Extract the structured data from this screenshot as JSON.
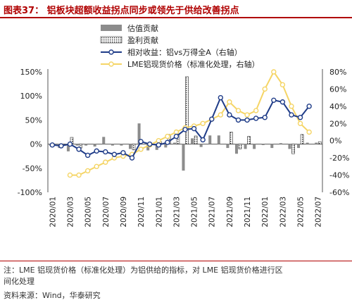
{
  "title": "图表37：  铝板块超额收益拐点同步或领先于供给改善拐点",
  "footnote_line1": "注：LME 铝现货价格（标准化处理）为铝供给的指标，对 LME 铝现货价格进行区",
  "footnote_line2": "间化处理",
  "source": "资料来源：Wind，华泰研究",
  "colors": {
    "valuation": "#8c8c8c",
    "earnings": "#333333",
    "relative": "#1f3c88",
    "lme": "#f5d566",
    "title": "#b00000"
  },
  "chart_data": {
    "type": "bar+line",
    "categories": [
      "2020/01",
      "2020/02",
      "2020/03",
      "2020/04",
      "2020/05",
      "2020/06",
      "2020/07",
      "2020/08",
      "2020/09",
      "2020/10",
      "2020/11",
      "2020/12",
      "2021/01",
      "2021/02",
      "2021/03",
      "2021/04",
      "2021/05",
      "2021/06",
      "2021/07",
      "2021/08",
      "2021/09",
      "2021/10",
      "2021/11",
      "2021/12",
      "2022/01",
      "2022/02",
      "2022/03",
      "2022/04",
      "2022/05",
      "2022/06",
      "2022/07"
    ],
    "x_tick_labels": [
      "2020/01",
      "2020/03",
      "2020/05",
      "2020/07",
      "2020/09",
      "2020/11",
      "2021/01",
      "2021/03",
      "2021/05",
      "2021/07",
      "2021/09",
      "2021/11",
      "2022/01",
      "2022/03",
      "2022/05",
      "2022/07"
    ],
    "left_axis": {
      "ticks": [
        "150%",
        "100%",
        "50%",
        "0%",
        "-50%",
        "-100%"
      ],
      "range": [
        -100,
        150
      ]
    },
    "right_axis": {
      "ticks": [
        "80%",
        "60%",
        "40%",
        "20%",
        "0%",
        "-20%",
        "-40%",
        "-60%"
      ],
      "range": [
        -60,
        80
      ]
    },
    "legend": [
      "估值贡献",
      "盈利贡献",
      "相对收益：铝vs万得全A（右轴）",
      "LME铝现货价格（标准化处理，右轴）"
    ],
    "series": [
      {
        "name": "估值贡献",
        "kind": "bar",
        "axis": "left",
        "values": [
          -3,
          -8,
          -15,
          -3,
          -3,
          -5,
          15,
          -3,
          -3,
          -10,
          43,
          -13,
          -12,
          -7,
          3,
          -55,
          12,
          -6,
          18,
          18,
          -8,
          -20,
          -10,
          -10,
          -2,
          -8,
          2,
          -10,
          -8,
          3,
          3
        ]
      },
      {
        "name": "盈利贡献",
        "kind": "bar",
        "axis": "left",
        "values": [
          0,
          -3,
          14,
          -8,
          0,
          0,
          0,
          0,
          0,
          -12,
          0,
          0,
          5,
          20,
          20,
          140,
          17,
          0,
          0,
          0,
          25,
          -10,
          16,
          0,
          0,
          0,
          0,
          -20,
          20,
          0,
          5
        ]
      },
      {
        "name": "相对收益：铝vs万得全A（右轴）",
        "kind": "line",
        "axis": "right",
        "values": [
          -5,
          -6,
          -4,
          -10,
          -17,
          -12,
          -13,
          -16,
          -14,
          -20,
          -1,
          -4,
          -5,
          -2,
          5,
          13,
          14,
          1,
          25,
          50,
          30,
          24,
          24,
          26,
          27,
          47,
          45,
          30,
          27,
          40,
          null
        ]
      },
      {
        "name": "LME铝现货价格（标准化处理，右轴）",
        "kind": "line",
        "axis": "right",
        "values": [
          null,
          null,
          -40,
          -40,
          -35,
          -30,
          -25,
          -20,
          -18,
          -16,
          -10,
          -5,
          0,
          5,
          10,
          15,
          17,
          20,
          25,
          30,
          45,
          35,
          30,
          35,
          60,
          80,
          65,
          40,
          20,
          10,
          null
        ]
      }
    ]
  }
}
